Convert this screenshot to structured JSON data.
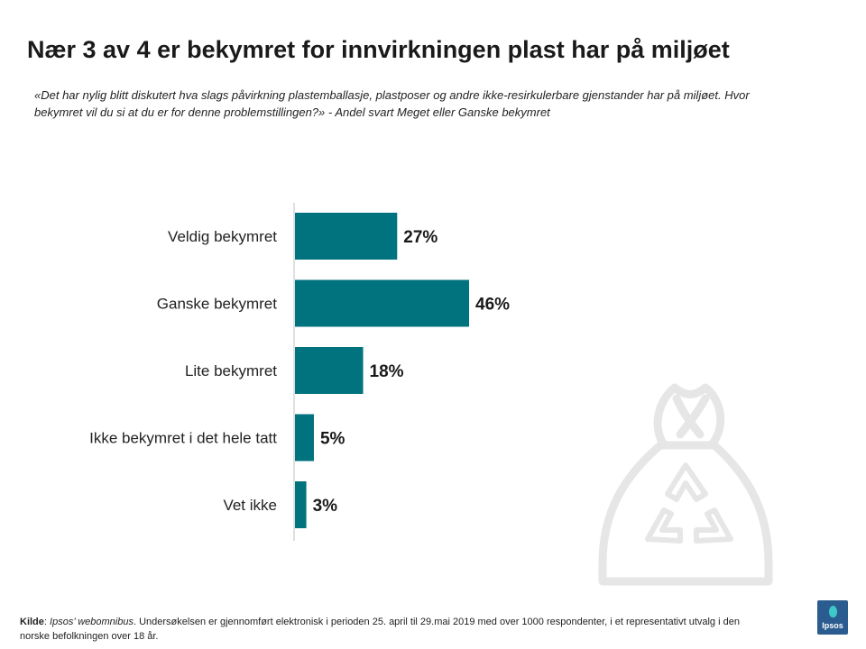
{
  "header": {
    "title": "Nær 3 av 4 er bekymret for innvirkningen plast har på miljøet",
    "subtitle": "«Det har nylig blitt diskutert hva slags påvirkning plastemballasje, plastposer og andre ikke-resirkulerbare gjenstander har på miljøet. Hvor bekymret vil du si at du er for denne problemstillingen?» - Andel svart Meget eller Ganske bekymret"
  },
  "chart_data": {
    "type": "bar",
    "orientation": "horizontal",
    "categories": [
      "Veldig bekymret",
      "Ganske bekymret",
      "Lite bekymret",
      "Ikke bekymret i det hele tatt",
      "Vet ikke"
    ],
    "values": [
      27,
      46,
      18,
      5,
      3
    ],
    "value_labels": [
      "27%",
      "46%",
      "18%",
      "5%",
      "3%"
    ],
    "xlim": [
      0,
      100
    ],
    "grid": false,
    "bar_color": "#00737f"
  },
  "source": {
    "label": "Kilde",
    "sep": ": ",
    "name": "Ipsos’ webomnibus",
    "text": ". Undersøkelsen er gjennomført elektronisk i perioden 25. april til 29.mai 2019 med over 1000 respondenter,  i et representativt utvalg i den norske befolkningen over 18 år."
  },
  "logo": {
    "text": "Ipsos",
    "color": "#2a5c8f",
    "accent": "#3ec8c8"
  },
  "decor": {
    "icon": "recycling-bag-icon",
    "color": "#e6e6e6"
  }
}
